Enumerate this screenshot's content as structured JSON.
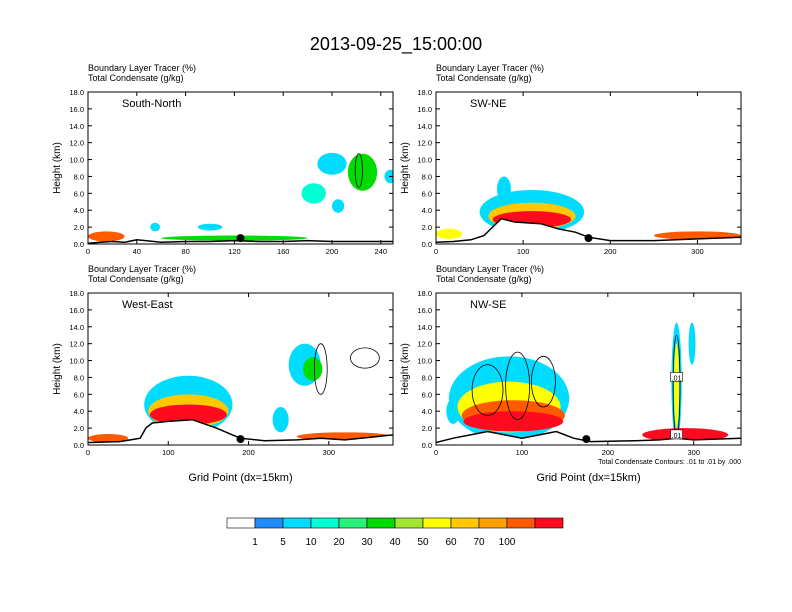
{
  "title": "2013-09-25_15:00:00",
  "colors": {
    "white": "#ffffff",
    "blue": "#1e8cff",
    "lightblue": "#00dcff",
    "cyan": "#00ffd2",
    "green1": "#28f078",
    "green2": "#00dc00",
    "lime": "#a0e632",
    "yellow": "#ffff00",
    "gold": "#ffc800",
    "orange": "#ffa000",
    "redorange": "#ff5a00",
    "red": "#ff0a1e"
  },
  "chart_data": [
    {
      "type": "area",
      "panel": "top-left",
      "subtitle_tracer": "Boundary Layer Tracer   (%)",
      "subtitle_condensate": "Total Condensate   (g/kg)",
      "label": "South-North",
      "ylabel": "Height (km)",
      "xlabel": "",
      "xlim": [
        0,
        250
      ],
      "ylim": [
        0,
        18
      ],
      "xticks": [
        "0",
        "40",
        "80",
        "120",
        "160",
        "200",
        "240"
      ],
      "yticks": [
        "0.0",
        "2.0",
        "4.0",
        "6.0",
        "8.0",
        "10.0",
        "12.0",
        "14.0",
        "16.0",
        "18.0"
      ],
      "marker_x": 125,
      "terrain": [
        [
          0,
          0.1
        ],
        [
          10,
          0.2
        ],
        [
          20,
          0.3
        ],
        [
          30,
          0.2
        ],
        [
          40,
          0.5
        ],
        [
          60,
          0.2
        ],
        [
          80,
          0.3
        ],
        [
          100,
          0.3
        ],
        [
          120,
          0.4
        ],
        [
          140,
          0.3
        ],
        [
          160,
          0.3
        ],
        [
          180,
          0.4
        ],
        [
          200,
          0.3
        ],
        [
          220,
          0.3
        ],
        [
          240,
          0.3
        ],
        [
          250,
          0.3
        ]
      ],
      "blobs": [
        {
          "x": 15,
          "y": 0.9,
          "rx": 15,
          "ry": 0.6,
          "pct": 60
        },
        {
          "x": 120,
          "y": 0.7,
          "rx": 60,
          "ry": 0.3,
          "pct": 20
        },
        {
          "x": 55,
          "y": 2.0,
          "rx": 4,
          "ry": 0.5,
          "pct": 5
        },
        {
          "x": 100,
          "y": 2.0,
          "rx": 10,
          "ry": 0.4,
          "pct": 5
        },
        {
          "x": 200,
          "y": 9.5,
          "rx": 12,
          "ry": 1.3,
          "pct": 5
        },
        {
          "x": 225,
          "y": 8.5,
          "rx": 12,
          "ry": 2.2,
          "pct": 20
        },
        {
          "x": 185,
          "y": 6.0,
          "rx": 10,
          "ry": 1.2,
          "pct": 10
        },
        {
          "x": 205,
          "y": 4.5,
          "rx": 5,
          "ry": 0.8,
          "pct": 5
        },
        {
          "x": 248,
          "y": 8.0,
          "rx": 5,
          "ry": 0.8,
          "pct": 5
        }
      ],
      "contours": [
        {
          "x": 222,
          "y": 8.7,
          "rx": 3,
          "ry": 2.0
        }
      ]
    },
    {
      "type": "area",
      "panel": "top-right",
      "subtitle_tracer": "Boundary Layer Tracer   (%)",
      "subtitle_condensate": "Total Condensate   (g/kg)",
      "label": "SW-NE",
      "ylabel": "Height (km)",
      "xlabel": "",
      "xlim": [
        0,
        350
      ],
      "ylim": [
        0,
        18
      ],
      "xticks": [
        "0",
        "100",
        "200",
        "300"
      ],
      "yticks": [
        "0.0",
        "2.0",
        "4.0",
        "6.0",
        "8.0",
        "10.0",
        "12.0",
        "14.0",
        "16.0",
        "18.0"
      ],
      "marker_x": 175,
      "terrain": [
        [
          0,
          0.2
        ],
        [
          20,
          0.3
        ],
        [
          40,
          0.5
        ],
        [
          55,
          1.0
        ],
        [
          65,
          2.0
        ],
        [
          75,
          3.0
        ],
        [
          90,
          2.6
        ],
        [
          120,
          2.4
        ],
        [
          140,
          1.8
        ],
        [
          160,
          1.4
        ],
        [
          175,
          0.8
        ],
        [
          200,
          0.4
        ],
        [
          250,
          0.4
        ],
        [
          300,
          0.6
        ],
        [
          350,
          0.8
        ]
      ],
      "blobs": [
        {
          "x": 15,
          "y": 1.2,
          "rx": 15,
          "ry": 0.6,
          "pct": 30
        },
        {
          "x": 110,
          "y": 3.8,
          "rx": 60,
          "ry": 2.6,
          "pct": 5
        },
        {
          "x": 78,
          "y": 6.5,
          "rx": 8,
          "ry": 1.5,
          "pct": 5
        },
        {
          "x": 110,
          "y": 3.3,
          "rx": 50,
          "ry": 1.6,
          "pct": 40
        },
        {
          "x": 110,
          "y": 2.9,
          "rx": 45,
          "ry": 1.0,
          "pct": 70
        },
        {
          "x": 300,
          "y": 1.0,
          "rx": 50,
          "ry": 0.5,
          "pct": 60
        }
      ],
      "contours": []
    },
    {
      "type": "area",
      "panel": "bottom-left",
      "subtitle_tracer": "Boundary Layer Tracer   (%)",
      "subtitle_condensate": "Total Condensate   (g/kg)",
      "label": "West-East",
      "ylabel": "Height (km)",
      "xlabel": "Grid Point (dx=15km)",
      "xlim": [
        0,
        380
      ],
      "ylim": [
        0,
        18
      ],
      "xticks": [
        "0",
        "100",
        "200",
        "300"
      ],
      "yticks": [
        "0.0",
        "2.0",
        "4.0",
        "6.0",
        "8.0",
        "10.0",
        "12.0",
        "14.0",
        "16.0",
        "18.0"
      ],
      "marker_x": 190,
      "terrain": [
        [
          0,
          0.3
        ],
        [
          40,
          0.4
        ],
        [
          65,
          0.8
        ],
        [
          72,
          2.0
        ],
        [
          80,
          2.6
        ],
        [
          100,
          2.8
        ],
        [
          130,
          3.0
        ],
        [
          160,
          2.0
        ],
        [
          180,
          1.2
        ],
        [
          190,
          0.8
        ],
        [
          220,
          0.5
        ],
        [
          260,
          0.6
        ],
        [
          290,
          0.8
        ],
        [
          320,
          0.6
        ],
        [
          360,
          1.0
        ],
        [
          380,
          1.2
        ]
      ],
      "blobs": [
        {
          "x": 25,
          "y": 0.8,
          "rx": 25,
          "ry": 0.5,
          "pct": 60
        },
        {
          "x": 125,
          "y": 4.8,
          "rx": 55,
          "ry": 3.4,
          "pct": 5
        },
        {
          "x": 125,
          "y": 4.0,
          "rx": 50,
          "ry": 2.0,
          "pct": 40
        },
        {
          "x": 125,
          "y": 3.6,
          "rx": 48,
          "ry": 1.2,
          "pct": 70
        },
        {
          "x": 270,
          "y": 9.5,
          "rx": 20,
          "ry": 2.5,
          "pct": 5
        },
        {
          "x": 280,
          "y": 9.0,
          "rx": 12,
          "ry": 1.4,
          "pct": 20
        },
        {
          "x": 240,
          "y": 3.0,
          "rx": 10,
          "ry": 1.5,
          "pct": 5
        },
        {
          "x": 320,
          "y": 1.0,
          "rx": 60,
          "ry": 0.5,
          "pct": 60
        }
      ],
      "contours": [
        {
          "x": 290,
          "y": 9.0,
          "rx": 8,
          "ry": 3.0
        },
        {
          "x": 345,
          "y": 10.3,
          "rx": 18,
          "ry": 1.2
        }
      ]
    },
    {
      "type": "area",
      "panel": "bottom-right",
      "subtitle_tracer": "Boundary Layer Tracer   (%)",
      "subtitle_condensate": "Total Condensate   (g/kg)",
      "label": "NW-SE",
      "ylabel": "Height (km)",
      "xlabel": "Grid Point (dx=15km)",
      "xlim": [
        0,
        355
      ],
      "ylim": [
        0,
        18
      ],
      "xticks": [
        "0",
        "100",
        "200",
        "300"
      ],
      "yticks": [
        "0.0",
        "2.0",
        "4.0",
        "6.0",
        "8.0",
        "10.0",
        "12.0",
        "14.0",
        "16.0",
        "18.0"
      ],
      "marker_x": 175,
      "note": "Total Condensate Contours: .01 to .01 by .000",
      "contour_labels": [
        ".01",
        ".01"
      ],
      "terrain": [
        [
          0,
          0.3
        ],
        [
          20,
          0.8
        ],
        [
          40,
          1.2
        ],
        [
          60,
          1.6
        ],
        [
          80,
          1.2
        ],
        [
          100,
          0.8
        ],
        [
          120,
          1.2
        ],
        [
          140,
          1.6
        ],
        [
          160,
          0.8
        ],
        [
          180,
          0.4
        ],
        [
          230,
          0.5
        ],
        [
          260,
          0.6
        ],
        [
          280,
          0.8
        ],
        [
          300,
          0.6
        ],
        [
          355,
          0.8
        ]
      ],
      "blobs": [
        {
          "x": 20,
          "y": 4.0,
          "rx": 8,
          "ry": 1.5,
          "pct": 5
        },
        {
          "x": 85,
          "y": 5.5,
          "rx": 70,
          "ry": 5.0,
          "pct": 5
        },
        {
          "x": 85,
          "y": 4.5,
          "rx": 60,
          "ry": 3.0,
          "pct": 30
        },
        {
          "x": 90,
          "y": 3.5,
          "rx": 60,
          "ry": 1.8,
          "pct": 60
        },
        {
          "x": 90,
          "y": 2.8,
          "rx": 58,
          "ry": 1.2,
          "pct": 70
        },
        {
          "x": 280,
          "y": 7.5,
          "rx": 6,
          "ry": 7.0,
          "pct": 5
        },
        {
          "x": 280,
          "y": 7.0,
          "rx": 3,
          "ry": 5.0,
          "pct": 30
        },
        {
          "x": 298,
          "y": 12.0,
          "rx": 4,
          "ry": 2.5,
          "pct": 5
        },
        {
          "x": 290,
          "y": 1.2,
          "rx": 50,
          "ry": 0.8,
          "pct": 70
        }
      ],
      "contours": [
        {
          "x": 60,
          "y": 6.5,
          "rx": 18,
          "ry": 3.0
        },
        {
          "x": 95,
          "y": 7.0,
          "rx": 14,
          "ry": 4.0
        },
        {
          "x": 125,
          "y": 7.5,
          "rx": 14,
          "ry": 3.0
        },
        {
          "x": 280,
          "y": 7.0,
          "rx": 4,
          "ry": 6.0
        }
      ]
    }
  ],
  "legend": {
    "labels": [
      "1",
      "5",
      "10",
      "20",
      "30",
      "40",
      "50",
      "60",
      "70",
      "100"
    ],
    "colors": [
      "#ffffff",
      "#1e8cff",
      "#00dcff",
      "#00ffd2",
      "#28f078",
      "#00dc00",
      "#a0e632",
      "#ffff00",
      "#ffc800",
      "#ffa000",
      "#ff5a00",
      "#ff0a1e"
    ]
  }
}
